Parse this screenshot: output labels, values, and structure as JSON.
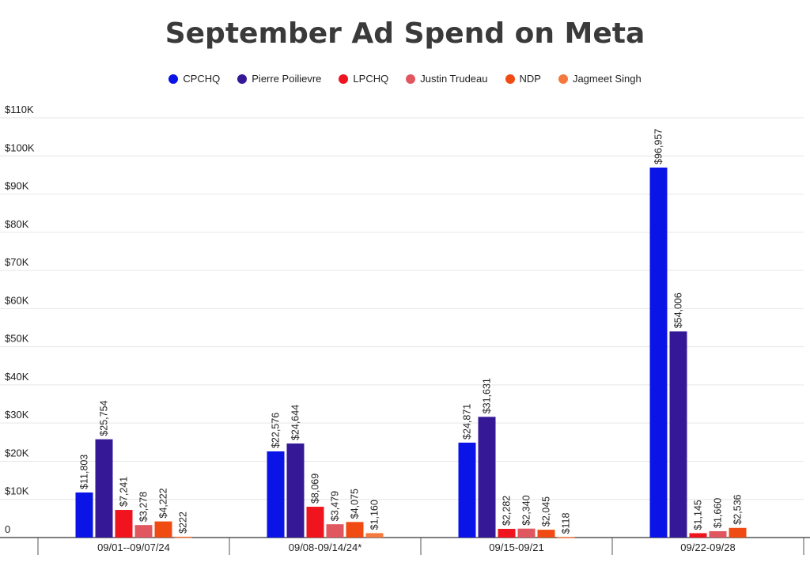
{
  "chart_data": {
    "type": "bar",
    "title": "September Ad Spend on Meta",
    "xlabel": "",
    "ylabel": "",
    "ylim": [
      0,
      110000
    ],
    "y_ticks": [
      {
        "value": 0,
        "label": "0"
      },
      {
        "value": 10000,
        "label": "$10K"
      },
      {
        "value": 20000,
        "label": "$20K"
      },
      {
        "value": 30000,
        "label": "$30K"
      },
      {
        "value": 40000,
        "label": "$40K"
      },
      {
        "value": 50000,
        "label": "$50K"
      },
      {
        "value": 60000,
        "label": "$60K"
      },
      {
        "value": 70000,
        "label": "$70K"
      },
      {
        "value": 80000,
        "label": "$80K"
      },
      {
        "value": 90000,
        "label": "$90K"
      },
      {
        "value": 100000,
        "label": "$100K"
      },
      {
        "value": 110000,
        "label": "$110K"
      }
    ],
    "grid": true,
    "legend_position": "top-center",
    "categories": [
      "09/01--09/07/24",
      "09/08-09/14/24*",
      "09/15-09/21",
      "09/22-09/28"
    ],
    "series": [
      {
        "name": "CPCHQ",
        "color": "#0a14e6",
        "values": [
          11803,
          22576,
          24871,
          96957
        ],
        "labels": [
          "$11,803",
          "$22,576",
          "$24,871",
          "$96,957"
        ]
      },
      {
        "name": "Pierre Poilievre",
        "color": "#351896",
        "values": [
          25754,
          24644,
          31631,
          54006
        ],
        "labels": [
          "$25,754",
          "$24,644",
          "$31,631",
          "$54,006"
        ]
      },
      {
        "name": "LPCHQ",
        "color": "#f0141e",
        "values": [
          7241,
          8069,
          2282,
          1145
        ],
        "labels": [
          "$7,241",
          "$8,069",
          "$2,282",
          "$1,145"
        ]
      },
      {
        "name": "Justin Trudeau",
        "color": "#e0575f",
        "values": [
          3278,
          3479,
          2340,
          1660
        ],
        "labels": [
          "$3,278",
          "$3,479",
          "$2,340",
          "$1,660"
        ]
      },
      {
        "name": "NDP",
        "color": "#f04b12",
        "values": [
          4222,
          4075,
          2045,
          2536
        ],
        "labels": [
          "$4,222",
          "$4,075",
          "$2,045",
          "$2,536"
        ]
      },
      {
        "name": "Jagmeet Singh",
        "color": "#f5793e",
        "values": [
          222,
          1160,
          118,
          0
        ],
        "labels": [
          "$222",
          "$1,160",
          "$118",
          ""
        ]
      }
    ]
  }
}
